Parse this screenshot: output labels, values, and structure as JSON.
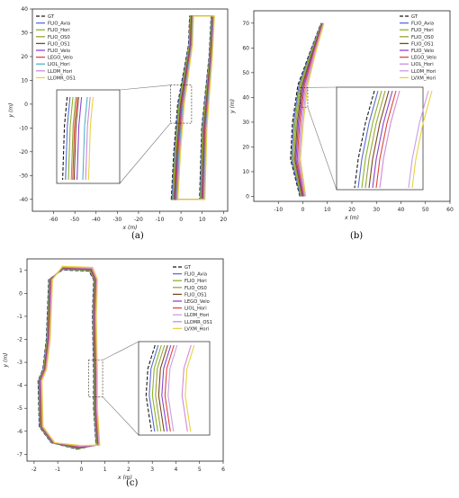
{
  "captions": {
    "a": "(a)",
    "b": "(b)",
    "c": "(c)"
  },
  "chart_data": [
    {
      "id": "a",
      "type": "line",
      "xlabel": "x (m)",
      "ylabel": "y (m)",
      "xlim": [
        -70,
        22
      ],
      "ylim": [
        -45,
        40
      ],
      "xticks": [
        -60,
        -50,
        -40,
        -30,
        -20,
        -10,
        0,
        10,
        20
      ],
      "yticks": [
        -40,
        -30,
        -20,
        -10,
        0,
        10,
        20,
        30,
        40
      ],
      "grid": false,
      "legend_position": "top-left",
      "inset": {
        "zoom_region": {
          "x": [
            -5,
            5
          ],
          "y": [
            -8,
            8
          ]
        },
        "placement": "center-left"
      },
      "series": [
        {
          "name": "GT",
          "color": "#1a1a1a",
          "dash": "4,2"
        },
        {
          "name": "FLIO_Avia",
          "color": "#5b6cd6"
        },
        {
          "name": "FLIO_Hori",
          "color": "#8ab52a"
        },
        {
          "name": "FLIO_OS0",
          "color": "#9aa23c"
        },
        {
          "name": "FLIO_OS1",
          "color": "#7a4a1e"
        },
        {
          "name": "FLIO_Velo",
          "color": "#8a45d0"
        },
        {
          "name": "LEGO_Velo",
          "color": "#e0453b"
        },
        {
          "name": "LIOL_Hori",
          "color": "#4cb6c9"
        },
        {
          "name": "LLOM_Hori",
          "color": "#d08ad8"
        },
        {
          "name": "LLOMR_OS1",
          "color": "#e9d23a"
        }
      ],
      "path_y": [
        -40,
        37
      ],
      "path_x_bottom": [
        -3,
        10
      ],
      "path_x_top": [
        5,
        15
      ]
    },
    {
      "id": "b",
      "type": "line",
      "xlabel": "x (m)",
      "ylabel": "y (m)",
      "xlim": [
        -20,
        60
      ],
      "ylim": [
        -2,
        75
      ],
      "xticks": [
        -10,
        0,
        10,
        20,
        30,
        40,
        50,
        60
      ],
      "yticks": [
        0,
        10,
        20,
        30,
        40,
        50,
        60,
        70
      ],
      "grid": false,
      "legend_position": "top-right",
      "inset": {
        "zoom_region": {
          "x": [
            -1,
            2
          ],
          "y": [
            36,
            44
          ]
        },
        "placement": "center-right"
      },
      "series": [
        {
          "name": "GT",
          "color": "#1a1a1a",
          "dash": "4,2"
        },
        {
          "name": "FLIO_Avia",
          "color": "#5b6cd6"
        },
        {
          "name": "FLIO_Hori",
          "color": "#8ab52a"
        },
        {
          "name": "FLIO_OS0",
          "color": "#9aa23c"
        },
        {
          "name": "FLIO_OS1",
          "color": "#7a4a1e"
        },
        {
          "name": "FLIO_Velo",
          "color": "#8a45d0"
        },
        {
          "name": "LEGO_Velo",
          "color": "#e0453b"
        },
        {
          "name": "LIOL_Hori",
          "color": "#d08ad8"
        },
        {
          "name": "LLOM_Hori",
          "color": "#c8a0e6"
        },
        {
          "name": "LVXM_Hori",
          "color": "#e9d23a"
        }
      ],
      "start": [
        0,
        0
      ],
      "end": [
        8,
        70
      ]
    },
    {
      "id": "c",
      "type": "line",
      "xlabel": "x (m)",
      "ylabel": "y (m)",
      "xlim": [
        -2.3,
        6
      ],
      "ylim": [
        -7.3,
        1.5
      ],
      "xticks": [
        -2,
        -1,
        0,
        1,
        2,
        3,
        4,
        5,
        6
      ],
      "yticks": [
        1,
        0,
        -1,
        -2,
        -3,
        -4,
        -5,
        -6,
        -7
      ],
      "grid": false,
      "legend_position": "top-right",
      "inset": {
        "zoom_region": {
          "x": [
            0.3,
            0.9
          ],
          "y": [
            -4.5,
            -2.9
          ]
        },
        "placement": "center-right"
      },
      "series": [
        {
          "name": "GT",
          "color": "#1a1a1a",
          "dash": "4,2"
        },
        {
          "name": "FLIO_Avia",
          "color": "#5b6cd6"
        },
        {
          "name": "FLIO_Hori",
          "color": "#8ab52a"
        },
        {
          "name": "FLIO_OS0",
          "color": "#9aa23c"
        },
        {
          "name": "FLIO_OS1",
          "color": "#7a4a1e"
        },
        {
          "name": "LEGO_Velo",
          "color": "#8a45d0"
        },
        {
          "name": "LIOL_Hori",
          "color": "#e0453b"
        },
        {
          "name": "LLOM_Hori",
          "color": "#c8a0e6"
        },
        {
          "name": "LLOMR_OS1",
          "color": "#d08ad8"
        },
        {
          "name": "LVXM_Hori",
          "color": "#e9d23a"
        }
      ],
      "path_x": [
        -1.7,
        0.8
      ],
      "path_y": [
        -6.7,
        1.1
      ]
    }
  ]
}
